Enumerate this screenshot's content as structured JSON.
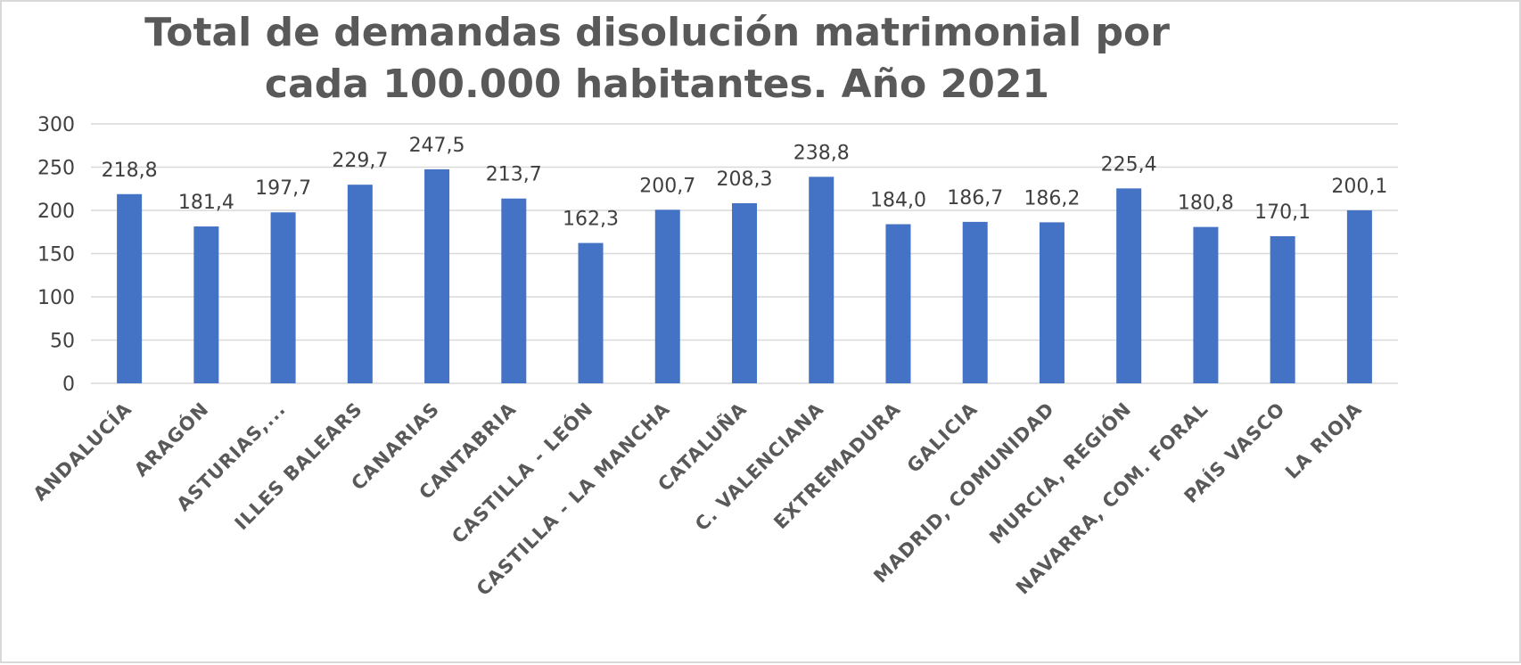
{
  "chart_data": {
    "type": "bar",
    "title": "Total de demandas disolución  matrimonial  por cada 100.000 habitantes. Año 2021",
    "categories": [
      "ANDALUCÍA",
      "ARAGÓN",
      "ASTURIAS,...",
      "ILLES BALEARS",
      "CANARIAS",
      "CANTABRIA",
      "CASTILLA - LEÓN",
      "CASTILLA - LA MANCHA",
      "CATALUÑA",
      "C. VALENCIANA",
      "EXTREMADURA",
      "GALICIA",
      "MADRID, COMUNIDAD",
      "MURCIA, REGIÓN",
      "NAVARRA, COM. FORAL",
      "PAÍS VASCO",
      "LA RIOJA"
    ],
    "values": [
      218.8,
      181.4,
      197.7,
      229.7,
      247.5,
      213.7,
      162.3,
      200.7,
      208.3,
      238.8,
      184.0,
      186.7,
      186.2,
      225.4,
      180.8,
      170.1,
      200.1
    ],
    "data_labels": [
      "218,8",
      "181,4",
      "197,7",
      "229,7",
      "247,5",
      "213,7",
      "162,3",
      "200,7",
      "208,3",
      "238,8",
      "184,0",
      "186,7",
      "186,2",
      "225,4",
      "180,8",
      "170,1",
      "200,1"
    ],
    "ylim": [
      0,
      300
    ],
    "yticks": [
      0,
      50,
      100,
      150,
      200,
      250,
      300
    ],
    "xlabel": "",
    "ylabel": "",
    "grid": true,
    "legend": "none",
    "bar_color": "#4472c4"
  }
}
